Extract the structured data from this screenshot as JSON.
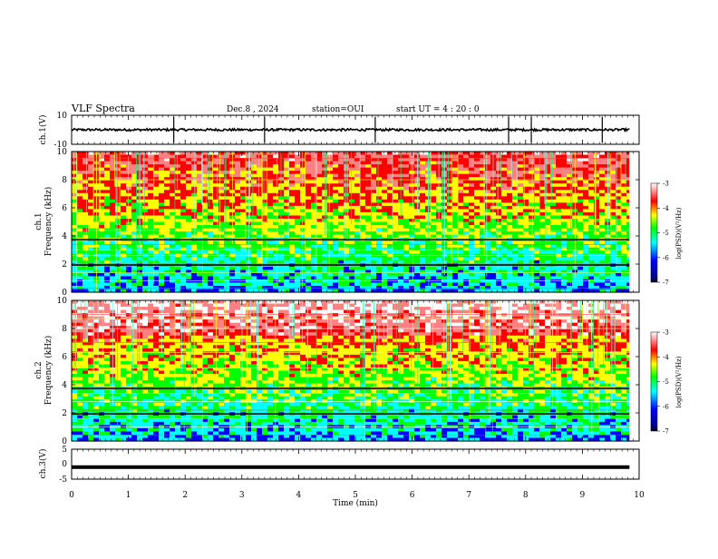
{
  "header": {
    "title": "VLF Spectra",
    "date": "Dec.8  , 2024",
    "station": "station=OUI",
    "start_ut": "start  UT  =   4 : 20 : 0"
  },
  "chart_data": [
    {
      "type": "line",
      "panel": "ch1-waveform",
      "ylabel": "ch.1(V)",
      "ylim": [
        -10,
        10
      ],
      "yticks": [
        "10",
        "-10"
      ],
      "x_range_min": [
        0,
        9.83
      ],
      "baseline_value": 0,
      "spike_times_min": [
        1.8,
        3.4,
        5.35,
        7.7,
        8.1,
        9.35
      ]
    },
    {
      "type": "heatmap",
      "panel": "ch1-spectrogram",
      "ylabel_top": "ch.1",
      "ylabel": "Frequency (kHz)",
      "ylim": [
        0,
        10
      ],
      "yticks": [
        "0",
        "2",
        "4",
        "6",
        "8",
        "10"
      ],
      "x_range_min": [
        0,
        9.83
      ],
      "colorbar": {
        "label": "log(PSD)(V²/Hz)",
        "ticks": [
          "-3",
          "-4",
          "-5",
          "-6",
          "-7"
        ],
        "range": [
          -7,
          -3
        ]
      }
    },
    {
      "type": "heatmap",
      "panel": "ch2-spectrogram",
      "ylabel_top": "ch.2",
      "ylabel": "Frequency (kHz)",
      "ylim": [
        0,
        10
      ],
      "yticks": [
        "0",
        "2",
        "4",
        "6",
        "8",
        "10"
      ],
      "x_range_min": [
        0,
        9.83
      ],
      "colorbar": {
        "label": "log(PSD)(V²/Hz)",
        "ticks": [
          "-3",
          "-4",
          "-5",
          "-6",
          "-7"
        ],
        "range": [
          -7,
          -3
        ]
      }
    },
    {
      "type": "line",
      "panel": "ch3-waveform",
      "ylabel": "ch.3(V)",
      "ylim": [
        -5,
        5
      ],
      "yticks": [
        "5",
        "0",
        "-5"
      ],
      "x_range_min": [
        0,
        9.83
      ],
      "constant_value": -1.0
    }
  ],
  "x_axis": {
    "label": "Time  (min)",
    "ticks": [
      "0",
      "1",
      "2",
      "3",
      "4",
      "5",
      "6",
      "7",
      "8",
      "9",
      "10"
    ],
    "range": [
      0,
      10
    ]
  },
  "colors": {
    "background": "#ffffff",
    "axes": "#000000",
    "signal": "#000000",
    "colormap": [
      "#000080",
      "#0000ff",
      "#00ffff",
      "#00ff00",
      "#ffff00",
      "#ff0000",
      "#ff8080",
      "#ffffff"
    ]
  }
}
